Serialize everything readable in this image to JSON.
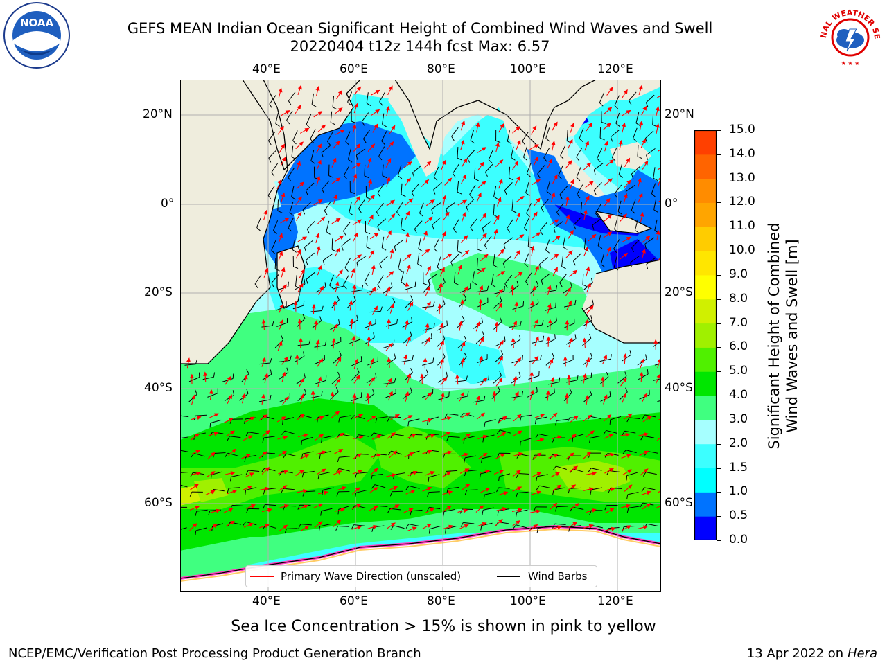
{
  "title": {
    "line1": "GEFS MEAN Indian Ocean Significant Height of Combined Wind Waves and Swell",
    "line2": "20220404 t12z 144h fcst   Max: 6.57"
  },
  "logos": {
    "left": {
      "icon": "noaa-logo",
      "text": "NOAA"
    },
    "right": {
      "icon": "nws-logo",
      "text": "NATIONAL WEATHER SERVICE"
    }
  },
  "map": {
    "longitude_ticks": [
      "40°E",
      "60°E",
      "80°E",
      "100°E",
      "120°E"
    ],
    "latitude_ticks": [
      "20°N",
      "0°",
      "20°S",
      "40°S",
      "60°S"
    ],
    "lon_range": [
      20,
      130
    ],
    "lat_range": [
      -75,
      27
    ],
    "colors": {
      "land": "#efeddd",
      "ice": "#ffffff",
      "arrow": "#ff0000",
      "barb": "#000000",
      "grid": "#b0b0b0"
    }
  },
  "legend": {
    "primary_wave": "Primary Wave Direction (unscaled)",
    "wind_barbs": "Wind Barbs",
    "primary_color": "#ff0000",
    "barb_color": "#000000"
  },
  "colorbar": {
    "label": "Significant Height of Combined Wind Waves and Swell [m]",
    "label_line1": "Significant Height of Combined",
    "label_line2": "Wind Waves and Swell [m]",
    "ticks": [
      "15.0",
      "14.0",
      "13.0",
      "12.0",
      "11.0",
      "10.0",
      "9.0",
      "8.0",
      "7.0",
      "6.0",
      "5.0",
      "4.0",
      "3.0",
      "2.0",
      "1.5",
      "1.0",
      "0.5",
      "0.0"
    ],
    "colors_bottom_to_top": [
      "#0000ff",
      "#0073ff",
      "#00ffff",
      "#3cffff",
      "#a6ffff",
      "#40ff80",
      "#00e600",
      "#50f000",
      "#a0f000",
      "#d0f000",
      "#ffff00",
      "#ffe600",
      "#ffcc00",
      "#ffa500",
      "#ff8c00",
      "#ff6400",
      "#ff4000",
      "#ff0000"
    ]
  },
  "subtitle": "Sea Ice Concentration > 15% is shown in pink to yellow",
  "footer": {
    "left": "NCEP/EMC/Verification Post Processing Product Generation Branch",
    "date": "13 Apr 2022 on ",
    "host": "Hera"
  }
}
